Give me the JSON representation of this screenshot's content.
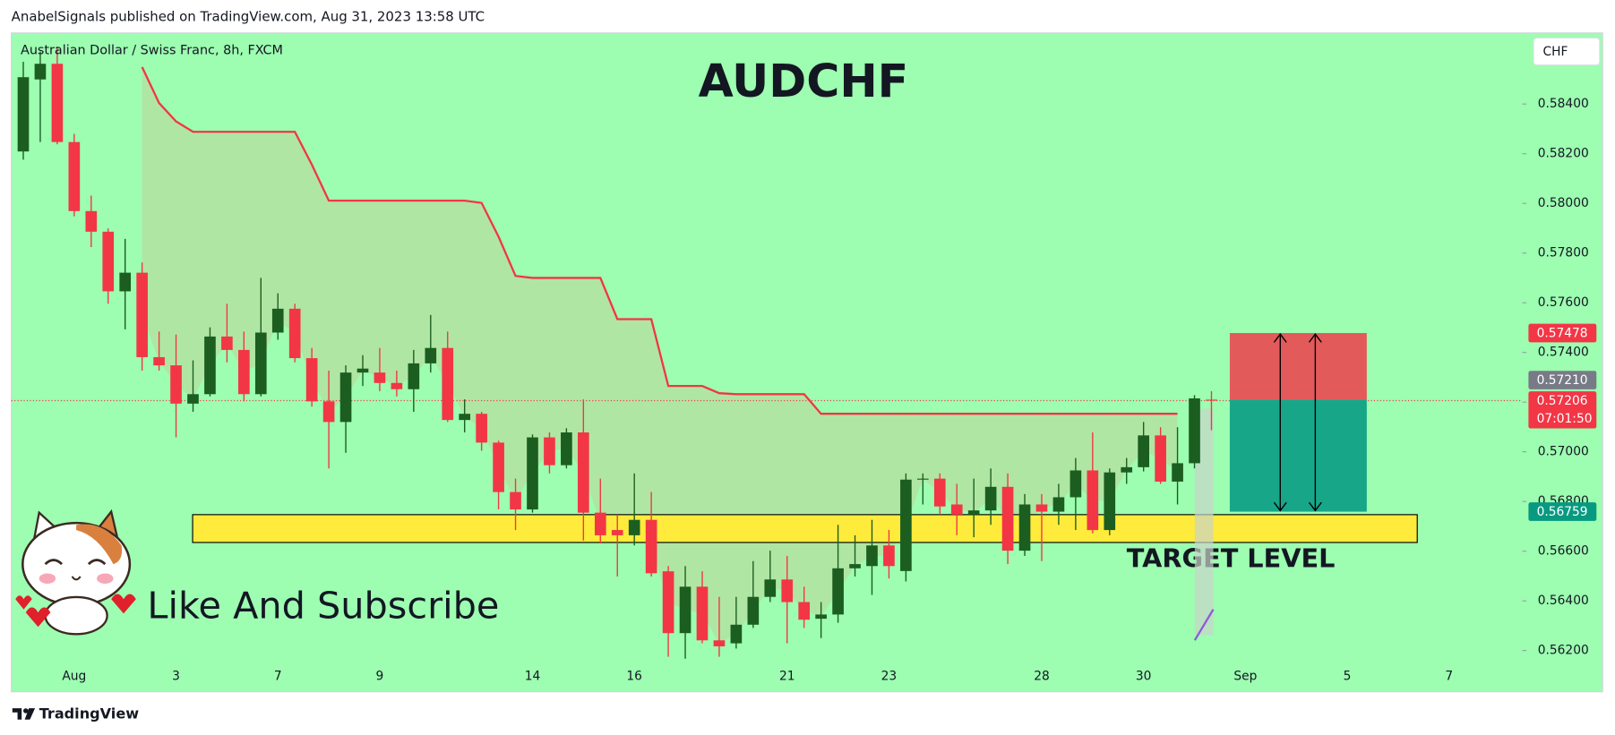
{
  "header": "AnabelSignals published on TradingView.com, Aug 31, 2023 13:58 UTC",
  "footer": "TradingView",
  "promo": "Like And Subscribe",
  "chart_data": {
    "type": "candlestick",
    "title": "AUDCHF",
    "subtitle": "Australian Dollar / Swiss Franc, 8h, FXCM",
    "currency": "CHF",
    "categories": [
      null,
      null,
      null,
      "Aug",
      null,
      null,
      null,
      null,
      null,
      "3",
      null,
      null,
      null,
      null,
      null,
      "7",
      null,
      null,
      null,
      null,
      null,
      "9",
      null,
      null,
      null,
      null,
      null,
      null,
      null,
      null,
      "14",
      null,
      null,
      null,
      null,
      null,
      "16",
      null,
      null,
      null,
      null,
      null,
      null,
      null,
      null,
      "21",
      null,
      null,
      null,
      null,
      null,
      "23",
      null,
      null,
      null,
      null,
      null,
      null,
      null,
      null,
      "28",
      null,
      null,
      null,
      null,
      null,
      "30",
      null,
      null,
      null,
      null,
      null,
      "Sep",
      null,
      null,
      null,
      null,
      null,
      "5",
      null,
      null,
      null,
      null,
      null,
      "7",
      null,
      null,
      null,
      null,
      null,
      null,
      null,
      null
    ],
    "open": [
      0.58209,
      0.58499,
      0.58562,
      0.58247,
      0.57969,
      0.57886,
      0.57646,
      0.57721,
      0.57381,
      0.57348,
      0.57194,
      0.57232,
      0.57464,
      0.5741,
      0.57232,
      0.5748,
      0.57576,
      0.57377,
      0.57203,
      0.5712,
      0.57319,
      0.57319,
      0.57277,
      0.57252,
      0.57356,
      0.57418,
      0.57128,
      0.57153,
      0.57037,
      0.56838,
      0.56768,
      0.57058,
      0.56946,
      0.57078,
      0.56755,
      0.56685,
      0.56664,
      0.56726,
      0.56519,
      0.5627,
      0.56457,
      0.56241,
      0.56229,
      0.56304,
      0.56416,
      0.56486,
      0.56395,
      0.56328,
      0.56345,
      0.56531,
      0.5654,
      0.56623,
      0.5652,
      0.56888,
      0.56892,
      0.56788,
      0.56747,
      0.56764,
      0.56859,
      0.56602,
      0.56788,
      0.56759,
      0.56817,
      0.56925,
      0.56685,
      0.56917,
      0.56938,
      0.57066,
      0.5688,
      0.56954,
      0.5721,
      null,
      null,
      null,
      null,
      null,
      null,
      null,
      null,
      null,
      null,
      null,
      null,
      null,
      null,
      null,
      null,
      null,
      null,
      null,
      null,
      null,
      null
    ],
    "high": [
      0.5857,
      0.58611,
      0.58632,
      0.5828,
      0.58031,
      0.57899,
      0.57857,
      0.57762,
      0.57484,
      0.57472,
      0.57368,
      0.57501,
      0.57596,
      0.57484,
      0.577,
      0.57638,
      0.57596,
      0.57418,
      0.57327,
      0.57348,
      0.57389,
      0.57418,
      0.57327,
      0.5741,
      0.57551,
      0.57484,
      0.57211,
      0.57161,
      0.57045,
      0.56892,
      0.5707,
      0.57078,
      0.57095,
      0.57211,
      0.56892,
      0.56747,
      0.56913,
      0.56838,
      0.5654,
      0.5654,
      0.56519,
      0.56416,
      0.56416,
      0.5656,
      0.56602,
      0.56581,
      0.56457,
      0.56395,
      0.56706,
      0.56664,
      0.56726,
      0.56685,
      0.56913,
      0.56913,
      0.56913,
      0.56871,
      0.56892,
      0.56933,
      0.56913,
      0.5683,
      0.5683,
      0.56871,
      0.56975,
      0.57078,
      0.56933,
      0.56975,
      0.5712,
      0.57099,
      0.57099,
      0.57228,
      0.57244,
      null,
      null,
      null,
      null,
      null,
      null,
      null,
      null,
      null,
      null,
      null,
      null,
      null,
      null,
      null,
      null,
      null,
      null,
      null,
      null,
      null,
      null
    ],
    "low": [
      0.58176,
      0.58247,
      0.58238,
      0.57948,
      0.57824,
      0.57596,
      0.57493,
      0.57327,
      0.57327,
      0.57058,
      0.57161,
      0.57223,
      0.5736,
      0.57203,
      0.57223,
      0.57451,
      0.5736,
      0.57182,
      0.56933,
      0.56996,
      0.57265,
      0.57244,
      0.57223,
      0.57161,
      0.57319,
      0.5712,
      0.57078,
      0.57004,
      0.56768,
      0.56685,
      0.56755,
      0.56913,
      0.56933,
      0.56643,
      0.56631,
      0.56498,
      0.56623,
      0.56498,
      0.56175,
      0.56167,
      0.56229,
      0.56175,
      0.56208,
      0.56291,
      0.56395,
      0.56229,
      0.56291,
      0.5625,
      0.56312,
      0.56498,
      0.56424,
      0.5649,
      0.56478,
      0.56788,
      0.56747,
      0.56664,
      0.56656,
      0.56706,
      0.56548,
      0.56581,
      0.5656,
      0.56706,
      0.56685,
      0.56672,
      0.56664,
      0.56871,
      0.56921,
      0.56871,
      0.56788,
      0.56933,
      0.57087,
      null,
      null,
      null,
      null,
      null,
      null,
      null,
      null,
      null,
      null,
      null,
      null,
      null,
      null,
      null,
      null,
      null,
      null,
      null,
      null,
      null,
      null
    ],
    "close": [
      0.58508,
      0.58562,
      0.58247,
      0.57969,
      0.57886,
      0.57646,
      0.57721,
      0.57381,
      0.57348,
      0.57194,
      0.57232,
      0.57464,
      0.5741,
      0.57232,
      0.5748,
      0.57576,
      0.57377,
      0.57203,
      0.5712,
      0.57319,
      0.57335,
      0.57277,
      0.57252,
      0.57356,
      0.57418,
      0.57128,
      0.57153,
      0.57037,
      0.56838,
      0.56768,
      0.57058,
      0.56946,
      0.57078,
      0.56755,
      0.56664,
      0.56664,
      0.56726,
      0.56511,
      0.5627,
      0.56457,
      0.56241,
      0.56217,
      0.56304,
      0.56416,
      0.56486,
      0.56395,
      0.56324,
      0.56345,
      0.56531,
      0.56548,
      0.56623,
      0.5654,
      0.56888,
      0.56892,
      0.5678,
      0.56747,
      0.56764,
      0.56859,
      0.56602,
      0.56788,
      0.56759,
      0.56817,
      0.56925,
      0.56685,
      0.56917,
      0.56938,
      0.57066,
      0.5688,
      0.56954,
      0.57215,
      0.57206,
      null,
      null,
      null,
      null,
      null,
      null,
      null,
      null,
      null,
      null,
      null,
      null,
      null,
      null,
      null,
      null,
      null,
      null,
      null,
      null,
      null,
      null
    ],
    "up_color": "#1b5e20",
    "down_color": "#f23645",
    "supertrend": {
      "color": "#f23645",
      "fill": "#b3e3a3",
      "values": [
        null,
        null,
        null,
        null,
        null,
        null,
        null,
        0.58549,
        0.58404,
        0.5833,
        0.58288,
        0.58288,
        0.58288,
        0.58288,
        0.58288,
        0.58288,
        0.58288,
        0.58156,
        0.58011,
        0.58011,
        0.58011,
        0.58011,
        0.58011,
        0.58011,
        0.58011,
        0.58011,
        0.58011,
        0.58002,
        0.57866,
        0.57708,
        0.577,
        0.577,
        0.577,
        0.577,
        0.577,
        0.57534,
        0.57534,
        0.57534,
        0.57265,
        0.57265,
        0.57265,
        0.57236,
        0.57232,
        0.57232,
        0.57232,
        0.57232,
        0.57232,
        0.57153,
        0.57153,
        0.57153,
        0.57153,
        0.57153,
        0.57153,
        0.57153,
        0.57153,
        0.57153,
        0.57153,
        0.57153,
        0.57153,
        0.57153,
        0.57153,
        0.57153,
        0.57153,
        0.57153,
        0.57153,
        0.57153,
        0.57153,
        0.57153,
        0.57153,
        null,
        null,
        null,
        null,
        null,
        null,
        null,
        null,
        null,
        null,
        null,
        null,
        null,
        null,
        null,
        null,
        null,
        null,
        null,
        null,
        null,
        null,
        null,
        null
      ]
    },
    "zone": {
      "low": 0.56635,
      "high": 0.56747,
      "label": "TARGET LEVEL",
      "color": "#ffeb3b"
    },
    "position": {
      "stop": {
        "value": 0.57478,
        "label": "0.57478",
        "color": "#f23645"
      },
      "entry": {
        "value": 0.5721,
        "label": "0.57210",
        "color": "#787b86"
      },
      "target": {
        "value": 0.56759,
        "label": "0.56759",
        "color": "#089981"
      }
    },
    "last_price": {
      "value": 0.57206,
      "label": "0.57206",
      "countdown": "07:01:50",
      "color": "#f23645"
    },
    "ylim": [
      0.56034,
      0.58682
    ],
    "yticks": [
      {
        "value": 0.562,
        "label": "0.56200"
      },
      {
        "value": 0.564,
        "label": "0.56400"
      },
      {
        "value": 0.566,
        "label": "0.56600"
      },
      {
        "value": 0.568,
        "label": "0.56800"
      },
      {
        "value": 0.57,
        "label": "0.57000"
      },
      {
        "value": 0.572,
        "label": "0.57200"
      },
      {
        "value": 0.574,
        "label": "0.57400"
      },
      {
        "value": 0.576,
        "label": "0.57600"
      },
      {
        "value": 0.578,
        "label": "0.57800"
      },
      {
        "value": 0.58,
        "label": "0.58000"
      },
      {
        "value": 0.582,
        "label": "0.58200"
      },
      {
        "value": 0.584,
        "label": "0.58400"
      }
    ],
    "grid": false,
    "background": "#9dfdb1"
  }
}
